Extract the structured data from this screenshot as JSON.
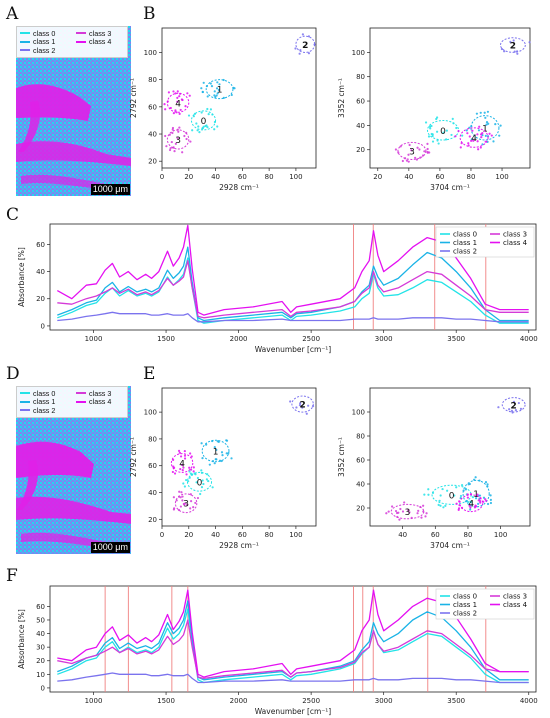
{
  "colors": {
    "class0": "#22e3e7",
    "class1": "#1ab3e6",
    "class2": "#7b73ee",
    "class3": "#d53ad8",
    "class4": "#e410f1",
    "marker": "#f08080",
    "map_bg": "#6a80f0"
  },
  "panels": {
    "A": "A",
    "B": "B",
    "C": "C",
    "D": "D",
    "E": "E",
    "F": "F"
  },
  "legend_labels": [
    "class 0",
    "class 1",
    "class 2",
    "class 3",
    "class 4"
  ],
  "scale_bar_label": "1000 μm",
  "chart_data": [
    {
      "id": "B-left",
      "type": "scatter",
      "xlabel": "2928 cm⁻¹",
      "ylabel": "2792 cm⁻¹",
      "xlim": [
        0,
        115
      ],
      "ylim": [
        15,
        118
      ],
      "xticks": [
        0,
        20,
        40,
        60,
        80,
        100
      ],
      "yticks": [
        20,
        40,
        60,
        80,
        100
      ],
      "clusters": [
        {
          "label": "0",
          "class": 0,
          "cx": 31,
          "cy": 50,
          "rx": 9,
          "ry": 7
        },
        {
          "label": "1",
          "class": 1,
          "cx": 43,
          "cy": 73,
          "rx": 10,
          "ry": 7
        },
        {
          "label": "2",
          "class": 2,
          "cx": 107,
          "cy": 106,
          "rx": 7,
          "ry": 6
        },
        {
          "label": "3",
          "class": 3,
          "cx": 12,
          "cy": 36,
          "rx": 8,
          "ry": 7
        },
        {
          "label": "4",
          "class": 4,
          "cx": 12,
          "cy": 63,
          "rx": 8,
          "ry": 7
        }
      ]
    },
    {
      "id": "B-right",
      "type": "scatter",
      "xlabel": "3704 cm⁻¹",
      "ylabel": "3352 cm⁻¹",
      "xlim": [
        15,
        118
      ],
      "ylim": [
        5,
        120
      ],
      "xticks": [
        20,
        40,
        60,
        80,
        100
      ],
      "yticks": [
        20,
        40,
        60,
        80,
        100
      ],
      "clusters": [
        {
          "label": "0",
          "class": 0,
          "cx": 62,
          "cy": 36,
          "rx": 10,
          "ry": 8
        },
        {
          "label": "1",
          "class": 1,
          "cx": 89,
          "cy": 38,
          "rx": 9,
          "ry": 10
        },
        {
          "label": "2",
          "class": 2,
          "cx": 107,
          "cy": 106,
          "rx": 8,
          "ry": 6
        },
        {
          "label": "3",
          "class": 3,
          "cx": 42,
          "cy": 19,
          "rx": 9,
          "ry": 7
        },
        {
          "label": "4",
          "class": 4,
          "cx": 82,
          "cy": 30,
          "rx": 9,
          "ry": 8
        }
      ]
    },
    {
      "id": "E-left",
      "type": "scatter",
      "xlabel": "2928 cm⁻¹",
      "ylabel": "2792 cm⁻¹",
      "xlim": [
        0,
        115
      ],
      "ylim": [
        15,
        118
      ],
      "xticks": [
        0,
        20,
        40,
        60,
        80,
        100
      ],
      "yticks": [
        20,
        40,
        60,
        80,
        100
      ],
      "clusters": [
        {
          "label": "0",
          "class": 0,
          "cx": 28,
          "cy": 48,
          "rx": 9,
          "ry": 7
        },
        {
          "label": "1",
          "class": 1,
          "cx": 40,
          "cy": 71,
          "rx": 10,
          "ry": 8
        },
        {
          "label": "2",
          "class": 2,
          "cx": 105,
          "cy": 106,
          "rx": 8,
          "ry": 6
        },
        {
          "label": "3",
          "class": 3,
          "cx": 18,
          "cy": 32,
          "rx": 8,
          "ry": 7
        },
        {
          "label": "4",
          "class": 4,
          "cx": 15,
          "cy": 62,
          "rx": 8,
          "ry": 7
        }
      ]
    },
    {
      "id": "E-right",
      "type": "scatter",
      "xlabel": "3704 cm⁻¹",
      "ylabel": "3352 cm⁻¹",
      "xlim": [
        20,
        118
      ],
      "ylim": [
        5,
        120
      ],
      "xticks": [
        40,
        60,
        80,
        100
      ],
      "yticks": [
        20,
        40,
        60,
        80,
        100
      ],
      "clusters": [
        {
          "label": "0",
          "class": 0,
          "cx": 70,
          "cy": 31,
          "rx": 12,
          "ry": 8
        },
        {
          "label": "1",
          "class": 1,
          "cx": 85,
          "cy": 32,
          "rx": 8,
          "ry": 11
        },
        {
          "label": "2",
          "class": 2,
          "cx": 108,
          "cy": 106,
          "rx": 7,
          "ry": 6
        },
        {
          "label": "3",
          "class": 3,
          "cx": 43,
          "cy": 17,
          "rx": 10,
          "ry": 6
        },
        {
          "label": "4",
          "class": 4,
          "cx": 82,
          "cy": 24,
          "rx": 7,
          "ry": 7
        }
      ]
    },
    {
      "id": "C",
      "type": "line",
      "xlabel": "Wavenumber [cm⁻¹]",
      "ylabel": "Absorbance [%]",
      "xlim": [
        700,
        4050
      ],
      "ylim": [
        -3,
        75
      ],
      "xticks": [
        1000,
        1500,
        2000,
        2500,
        3000,
        3500,
        4000
      ],
      "yticks": [
        0,
        20,
        40,
        60
      ],
      "markers": [
        2792,
        2928,
        3352,
        3704
      ],
      "series_x": [
        750,
        850,
        950,
        1020,
        1080,
        1130,
        1180,
        1240,
        1300,
        1360,
        1400,
        1450,
        1510,
        1550,
        1590,
        1620,
        1650,
        1680,
        1720,
        1760,
        1900,
        2100,
        2300,
        2360,
        2400,
        2500,
        2700,
        2800,
        2850,
        2900,
        2930,
        2960,
        3000,
        3100,
        3200,
        3300,
        3400,
        3500,
        3600,
        3700,
        3800,
        4000
      ],
      "series": [
        {
          "name": "class 0",
          "values": [
            6,
            10,
            15,
            17,
            24,
            28,
            22,
            26,
            22,
            24,
            22,
            25,
            36,
            30,
            34,
            38,
            50,
            28,
            4,
            2,
            4,
            6,
            8,
            4,
            7,
            8,
            11,
            14,
            20,
            24,
            38,
            28,
            22,
            23,
            28,
            34,
            32,
            25,
            18,
            8,
            2,
            2
          ]
        },
        {
          "name": "class 1",
          "values": [
            8,
            12,
            17,
            19,
            28,
            32,
            25,
            29,
            25,
            27,
            25,
            28,
            41,
            35,
            39,
            44,
            58,
            32,
            6,
            4,
            6,
            8,
            10,
            6,
            9,
            10,
            14,
            18,
            25,
            30,
            44,
            36,
            30,
            35,
            45,
            54,
            50,
            40,
            28,
            12,
            4,
            4
          ]
        },
        {
          "name": "class 2",
          "values": [
            4,
            5,
            7,
            8,
            9,
            10,
            9,
            9,
            9,
            9,
            8,
            8,
            9,
            8,
            8,
            8,
            9,
            6,
            3,
            3,
            4,
            4,
            5,
            4,
            4,
            4,
            4,
            5,
            5,
            5,
            6,
            5,
            5,
            5,
            6,
            6,
            6,
            5,
            5,
            4,
            3,
            3
          ]
        },
        {
          "name": "class 3",
          "values": [
            17,
            16,
            20,
            22,
            25,
            28,
            24,
            27,
            23,
            25,
            23,
            26,
            35,
            30,
            33,
            36,
            48,
            28,
            7,
            6,
            8,
            10,
            12,
            7,
            10,
            11,
            14,
            18,
            24,
            28,
            40,
            30,
            25,
            28,
            34,
            40,
            38,
            30,
            22,
            12,
            10,
            10
          ]
        },
        {
          "name": "class 4",
          "values": [
            26,
            20,
            30,
            31,
            41,
            46,
            36,
            40,
            34,
            38,
            35,
            40,
            55,
            44,
            50,
            58,
            74,
            42,
            10,
            8,
            12,
            14,
            18,
            10,
            14,
            16,
            20,
            28,
            40,
            48,
            70,
            52,
            40,
            48,
            58,
            65,
            62,
            50,
            35,
            16,
            12,
            12
          ]
        }
      ]
    },
    {
      "id": "F",
      "type": "line",
      "xlabel": "Wavenumber [cm⁻¹]",
      "ylabel": "Absorbance [%]",
      "xlim": [
        700,
        4050
      ],
      "ylim": [
        -3,
        75
      ],
      "xticks": [
        1000,
        1500,
        2000,
        2500,
        3000,
        3500,
        4000
      ],
      "yticks": [
        0,
        10,
        20,
        30,
        40,
        50,
        60
      ],
      "markers": [
        1080,
        1240,
        1540,
        1650,
        2792,
        2856,
        2928,
        3304,
        3704
      ],
      "series_x": [
        750,
        850,
        950,
        1020,
        1080,
        1130,
        1180,
        1240,
        1300,
        1360,
        1400,
        1450,
        1510,
        1550,
        1590,
        1620,
        1650,
        1680,
        1720,
        1760,
        1900,
        2100,
        2300,
        2360,
        2400,
        2500,
        2700,
        2800,
        2850,
        2900,
        2930,
        2960,
        3000,
        3100,
        3200,
        3300,
        3400,
        3500,
        3600,
        3700,
        3800,
        4000
      ],
      "series": [
        {
          "name": "class 0",
          "values": [
            10,
            14,
            20,
            22,
            30,
            34,
            26,
            30,
            26,
            28,
            26,
            30,
            44,
            36,
            40,
            46,
            58,
            34,
            6,
            4,
            6,
            8,
            10,
            6,
            9,
            10,
            14,
            18,
            25,
            30,
            42,
            32,
            26,
            28,
            34,
            40,
            38,
            30,
            22,
            10,
            4,
            4
          ]
        },
        {
          "name": "class 1",
          "values": [
            12,
            16,
            22,
            24,
            33,
            37,
            29,
            33,
            29,
            31,
            29,
            33,
            48,
            40,
            44,
            50,
            64,
            37,
            8,
            6,
            8,
            10,
            12,
            8,
            11,
            12,
            16,
            20,
            28,
            34,
            48,
            40,
            34,
            40,
            50,
            56,
            52,
            42,
            30,
            14,
            6,
            6
          ]
        },
        {
          "name": "class 2",
          "values": [
            5,
            6,
            8,
            9,
            10,
            11,
            10,
            10,
            10,
            10,
            9,
            9,
            10,
            9,
            9,
            9,
            10,
            7,
            4,
            4,
            5,
            5,
            6,
            5,
            5,
            5,
            5,
            6,
            6,
            6,
            7,
            6,
            6,
            6,
            7,
            7,
            7,
            6,
            6,
            5,
            4,
            4
          ]
        },
        {
          "name": "class 3",
          "values": [
            20,
            18,
            22,
            24,
            27,
            30,
            26,
            29,
            25,
            27,
            25,
            28,
            38,
            32,
            35,
            39,
            50,
            30,
            8,
            7,
            9,
            11,
            13,
            8,
            11,
            12,
            15,
            19,
            26,
            30,
            42,
            32,
            27,
            30,
            36,
            42,
            40,
            32,
            24,
            14,
            12,
            12
          ]
        },
        {
          "name": "class 4",
          "values": [
            22,
            20,
            28,
            30,
            40,
            45,
            35,
            39,
            33,
            37,
            34,
            39,
            54,
            43,
            49,
            56,
            72,
            41,
            10,
            8,
            12,
            14,
            18,
            10,
            14,
            16,
            20,
            28,
            42,
            50,
            72,
            54,
            42,
            50,
            60,
            66,
            63,
            52,
            36,
            18,
            12,
            12
          ]
        }
      ]
    }
  ]
}
